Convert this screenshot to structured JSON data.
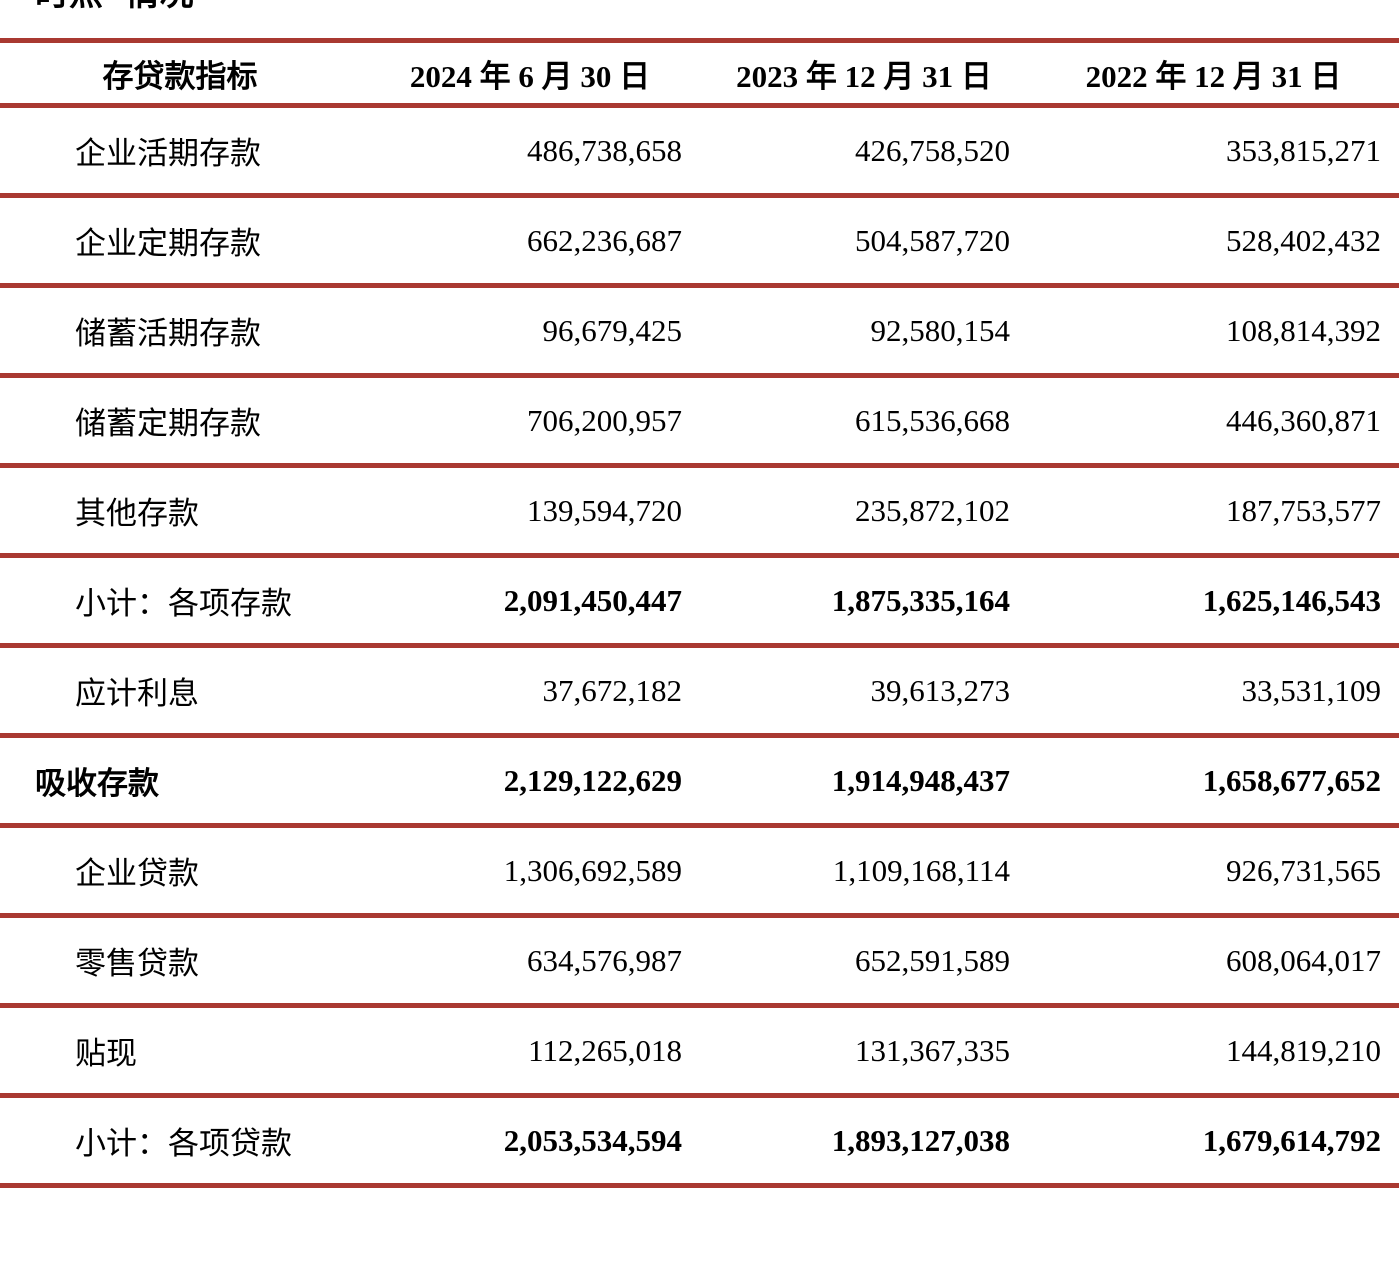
{
  "page": {
    "clipped_text": "时点 情况",
    "colors": {
      "line": "#a93931",
      "text": "#000000",
      "background": "#ffffff"
    }
  },
  "table": {
    "columns": [
      "存贷款指标",
      "2024 年 6 月 30 日",
      "2023 年 12 月 31 日",
      "2022 年 12 月 31 日"
    ],
    "rows": [
      {
        "label": "企业活期存款",
        "values": [
          "486,738,658",
          "426,758,520",
          "353,815,271"
        ],
        "bold": false,
        "indent": 1
      },
      {
        "label": "企业定期存款",
        "values": [
          "662,236,687",
          "504,587,720",
          "528,402,432"
        ],
        "bold": false,
        "indent": 1
      },
      {
        "label": "储蓄活期存款",
        "values": [
          "96,679,425",
          "92,580,154",
          "108,814,392"
        ],
        "bold": false,
        "indent": 1
      },
      {
        "label": "储蓄定期存款",
        "values": [
          "706,200,957",
          "615,536,668",
          "446,360,871"
        ],
        "bold": false,
        "indent": 1
      },
      {
        "label": "其他存款",
        "values": [
          "139,594,720",
          "235,872,102",
          "187,753,577"
        ],
        "bold": false,
        "indent": 1
      },
      {
        "label": "小计：各项存款",
        "values": [
          "2,091,450,447",
          "1,875,335,164",
          "1,625,146,543"
        ],
        "bold": true,
        "indent": 1
      },
      {
        "label": "应计利息",
        "values": [
          "37,672,182",
          "39,613,273",
          "33,531,109"
        ],
        "bold": false,
        "indent": 1
      },
      {
        "label": "吸收存款",
        "values": [
          "2,129,122,629",
          "1,914,948,437",
          "1,658,677,652"
        ],
        "bold": true,
        "indent": 0
      },
      {
        "label": "企业贷款",
        "values": [
          "1,306,692,589",
          "1,109,168,114",
          "926,731,565"
        ],
        "bold": false,
        "indent": 1
      },
      {
        "label": "零售贷款",
        "values": [
          "634,576,987",
          "652,591,589",
          "608,064,017"
        ],
        "bold": false,
        "indent": 1
      },
      {
        "label": "贴现",
        "values": [
          "112,265,018",
          "131,367,335",
          "144,819,210"
        ],
        "bold": false,
        "indent": 1
      },
      {
        "label": "小计：各项贷款",
        "values": [
          "2,053,534,594",
          "1,893,127,038",
          "1,679,614,792"
        ],
        "bold": true,
        "indent": 1
      }
    ]
  }
}
